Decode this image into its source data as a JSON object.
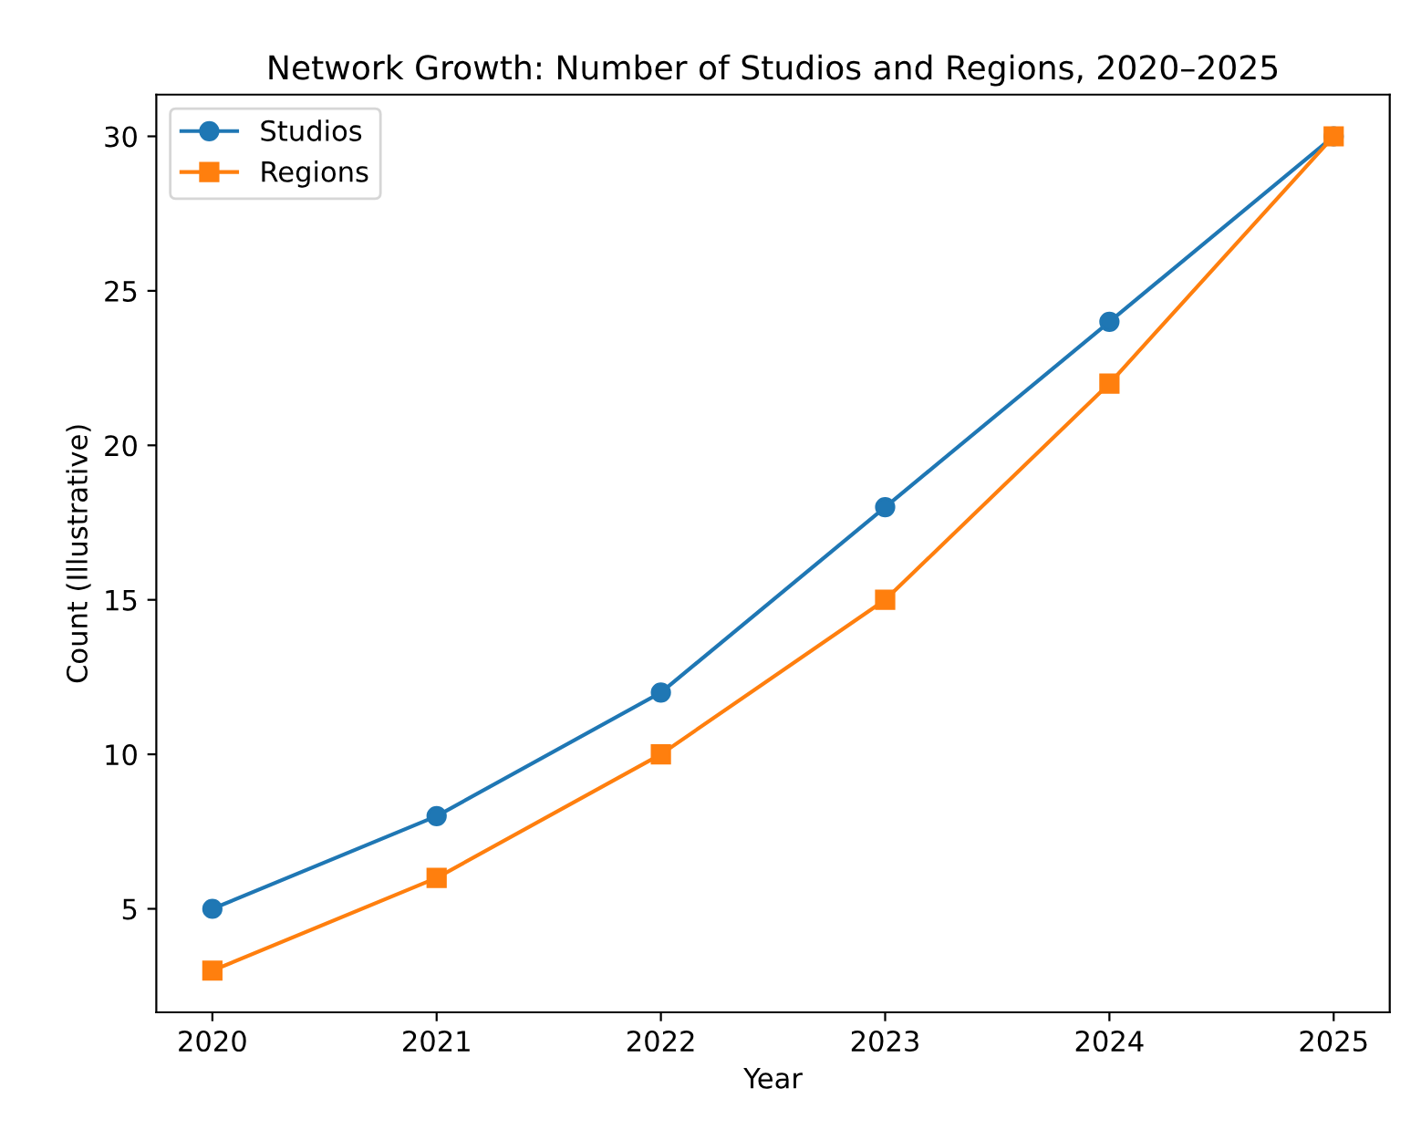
{
  "chart_data": {
    "type": "line",
    "title": "Network Growth: Number of Studios and Regions, 2020–2025",
    "xlabel": "Year",
    "ylabel": "Count (Illustrative)",
    "x": [
      2020,
      2021,
      2022,
      2023,
      2024,
      2025
    ],
    "series": [
      {
        "name": "Studios",
        "color": "#1f77b4",
        "marker": "circle",
        "values": [
          5,
          8,
          12,
          18,
          24,
          30
        ]
      },
      {
        "name": "Regions",
        "color": "#ff7f0e",
        "marker": "square",
        "values": [
          3,
          6,
          10,
          15,
          22,
          30
        ]
      }
    ],
    "xlim": [
      2019.75,
      2025.25
    ],
    "xticks": [
      2020,
      2021,
      2022,
      2023,
      2024,
      2025
    ],
    "ylim": [
      1.65,
      31.35
    ],
    "yticks": [
      5,
      10,
      15,
      20,
      25,
      30
    ],
    "grid": false,
    "legend": "top left",
    "line_style": "solid"
  }
}
